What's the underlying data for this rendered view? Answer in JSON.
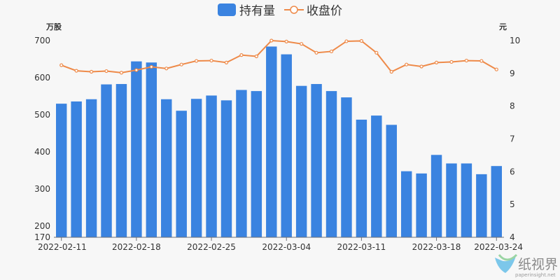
{
  "chart_data": {
    "type": "bar+line",
    "legend": {
      "position": "top-center",
      "items": [
        {
          "name": "持有量",
          "marker": "bar",
          "color": "#3a83e0"
        },
        {
          "name": "收盘价",
          "marker": "line",
          "color": "#ee8a49"
        }
      ]
    },
    "left_axis": {
      "unit": "万股",
      "min": 170,
      "max": 700,
      "ticks": [
        170,
        200,
        300,
        400,
        500,
        600,
        700
      ]
    },
    "right_axis": {
      "unit": "元",
      "min": 4,
      "max": 10,
      "ticks": [
        4,
        5,
        6,
        7,
        8,
        9,
        10
      ]
    },
    "x_tick_labels": [
      "2022-02-11",
      "2022-02-18",
      "2022-02-25",
      "2022-03-04",
      "2022-03-11",
      "2022-03-18",
      "2022-03-24"
    ],
    "x": [
      "2022-02-11",
      "2022-02-14",
      "2022-02-15",
      "2022-02-16",
      "2022-02-17",
      "2022-02-18",
      "2022-02-21",
      "2022-02-22",
      "2022-02-23",
      "2022-02-24",
      "2022-02-25",
      "2022-02-28",
      "2022-03-01",
      "2022-03-02",
      "2022-03-03",
      "2022-03-04",
      "2022-03-07",
      "2022-03-08",
      "2022-03-09",
      "2022-03-10",
      "2022-03-11",
      "2022-03-14",
      "2022-03-15",
      "2022-03-16",
      "2022-03-17",
      "2022-03-18",
      "2022-03-21",
      "2022-03-22",
      "2022-03-23",
      "2022-03-24"
    ],
    "series": [
      {
        "name": "持有量",
        "type": "bar",
        "axis": "left",
        "values": [
          530,
          536,
          542,
          582,
          583,
          644,
          641,
          542,
          511,
          543,
          552,
          539,
          567,
          564,
          684,
          663,
          578,
          583,
          564,
          547,
          487,
          498,
          473,
          348,
          342,
          392,
          369,
          369,
          340,
          362
        ]
      },
      {
        "name": "收盘价",
        "type": "line",
        "axis": "right",
        "values": [
          9.25,
          9.08,
          9.05,
          9.07,
          9.02,
          9.1,
          9.2,
          9.15,
          9.27,
          9.38,
          9.39,
          9.33,
          9.56,
          9.52,
          10.0,
          9.97,
          9.9,
          9.63,
          9.67,
          9.98,
          9.99,
          9.63,
          9.05,
          9.27,
          9.21,
          9.33,
          9.35,
          9.39,
          9.38,
          9.12
        ]
      }
    ],
    "colors": {
      "bar": "#3a83e0",
      "line": "#ee8a49",
      "axis": "#6e7079",
      "grid": "#e6e6e6"
    }
  },
  "watermark": {
    "text": "纸视界",
    "sub": "paperinsight.net"
  }
}
